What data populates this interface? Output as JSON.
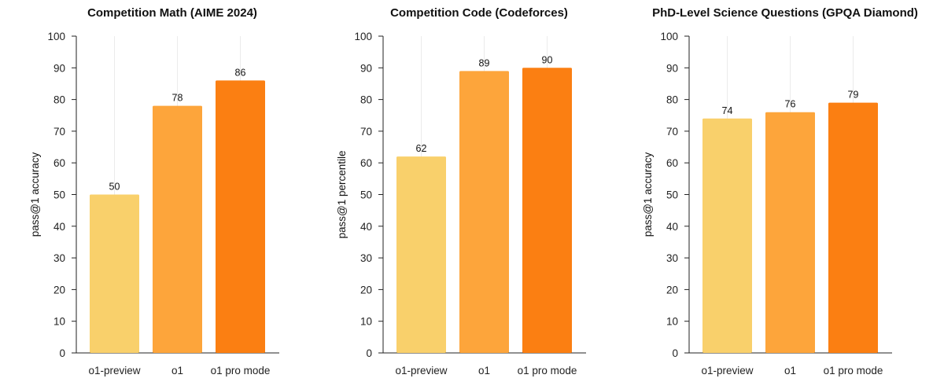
{
  "chart_data": [
    {
      "type": "bar",
      "title": "Competition Math (AIME 2024)",
      "ylabel": "pass@1 accuracy",
      "xlabel": "",
      "categories": [
        "o1-preview",
        "o1",
        "o1 pro mode"
      ],
      "values": [
        50,
        78,
        86
      ],
      "colors": [
        "#f9d06b",
        "#fda53b",
        "#fb7f12"
      ],
      "ylim": [
        0,
        100
      ],
      "yticks": [
        0,
        10,
        20,
        30,
        40,
        50,
        60,
        70,
        80,
        90,
        100
      ],
      "grid": "vertical"
    },
    {
      "type": "bar",
      "title": "Competition Code (Codeforces)",
      "ylabel": "pass@1 percentile",
      "xlabel": "",
      "categories": [
        "o1-preview",
        "o1",
        "o1 pro mode"
      ],
      "values": [
        62,
        89,
        90
      ],
      "colors": [
        "#f9d06b",
        "#fda53b",
        "#fb7f12"
      ],
      "ylim": [
        0,
        100
      ],
      "yticks": [
        0,
        10,
        20,
        30,
        40,
        50,
        60,
        70,
        80,
        90,
        100
      ],
      "grid": "vertical"
    },
    {
      "type": "bar",
      "title": "PhD-Level Science Questions (GPQA Diamond)",
      "ylabel": "pass@1 accuracy",
      "xlabel": "",
      "categories": [
        "o1-preview",
        "o1",
        "o1 pro mode"
      ],
      "values": [
        74,
        76,
        79
      ],
      "colors": [
        "#f9d06b",
        "#fda53b",
        "#fb7f12"
      ],
      "ylim": [
        0,
        100
      ],
      "yticks": [
        0,
        10,
        20,
        30,
        40,
        50,
        60,
        70,
        80,
        90,
        100
      ],
      "grid": "vertical"
    }
  ]
}
